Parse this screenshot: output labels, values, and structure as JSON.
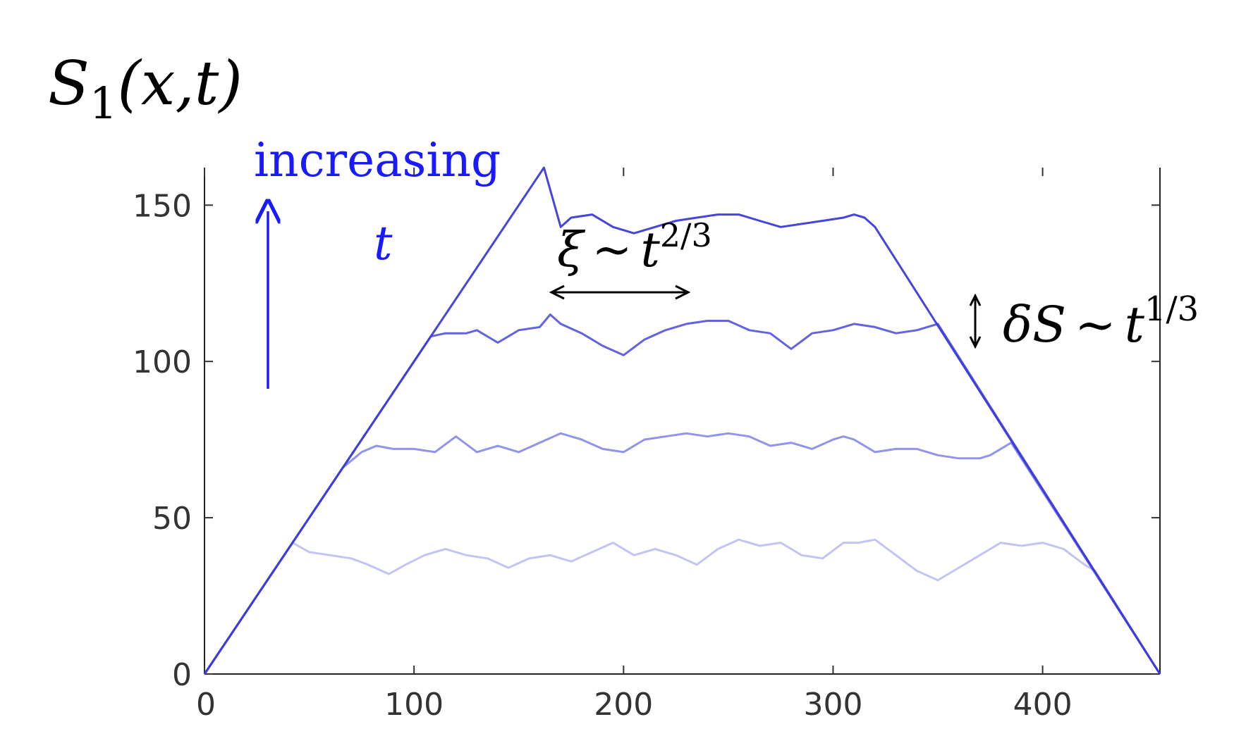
{
  "chart_data": {
    "type": "line",
    "title": "",
    "ylabel": {
      "letter": "S",
      "sub": "1",
      "args": "(x,t)"
    },
    "xlabel": "",
    "xlim": [
      0,
      456
    ],
    "ylim": [
      0,
      162
    ],
    "xticks": [
      0,
      100,
      200,
      300,
      400
    ],
    "yticks": [
      0,
      50,
      100,
      150
    ],
    "grid": false,
    "legend": "none",
    "colors": {
      "series": "#3b3bdc",
      "annotation": "#1a1aff",
      "axis": "#333333"
    },
    "series": [
      {
        "opacity": 0.3,
        "x": [
          0,
          42,
          50,
          60,
          70,
          78,
          88,
          96,
          105,
          115,
          125,
          135,
          145,
          155,
          165,
          175,
          185,
          195,
          205,
          215,
          225,
          235,
          245,
          255,
          265,
          275,
          285,
          295,
          305,
          312,
          320,
          330,
          340,
          350,
          360,
          370,
          380,
          390,
          400,
          410,
          420,
          425,
          456
        ],
        "y": [
          0,
          42,
          39,
          38,
          37,
          35,
          32,
          35,
          38,
          40,
          38,
          37,
          34,
          37,
          38,
          36,
          39,
          42,
          38,
          40,
          38,
          35,
          40,
          43,
          41,
          42,
          38,
          37,
          42,
          42,
          43,
          38,
          33,
          30,
          34,
          38,
          42,
          41,
          42,
          40,
          35,
          33,
          0
        ]
      },
      {
        "opacity": 0.55,
        "x": [
          0,
          66,
          75,
          82,
          90,
          100,
          110,
          120,
          130,
          140,
          150,
          160,
          170,
          180,
          190,
          200,
          210,
          220,
          230,
          240,
          250,
          260,
          270,
          280,
          290,
          300,
          305,
          310,
          320,
          330,
          340,
          350,
          360,
          370,
          375,
          385,
          456
        ],
        "y": [
          0,
          66,
          71,
          73,
          72,
          72,
          71,
          76,
          71,
          73,
          71,
          74,
          77,
          75,
          72,
          71,
          75,
          76,
          77,
          76,
          77,
          76,
          73,
          74,
          72,
          75,
          76,
          75,
          71,
          72,
          72,
          70,
          69,
          69,
          70,
          74,
          0
        ]
      },
      {
        "opacity": 0.8,
        "x": [
          0,
          108,
          115,
          125,
          130,
          140,
          150,
          160,
          165,
          170,
          180,
          190,
          200,
          210,
          220,
          230,
          240,
          250,
          260,
          270,
          280,
          290,
          300,
          310,
          320,
          330,
          340,
          350,
          456
        ],
        "y": [
          0,
          108,
          109,
          109,
          110,
          106,
          110,
          111,
          115,
          112,
          109,
          105,
          102,
          107,
          110,
          112,
          113,
          113,
          110,
          109,
          104,
          109,
          110,
          112,
          111,
          109,
          110,
          112,
          0
        ]
      },
      {
        "opacity": 0.95,
        "x": [
          0,
          162,
          170,
          175,
          185,
          195,
          205,
          215,
          225,
          235,
          245,
          255,
          265,
          275,
          285,
          295,
          305,
          310,
          315,
          320,
          456
        ],
        "y": [
          0,
          162,
          143,
          146,
          147,
          143,
          141,
          143,
          145,
          146,
          147,
          147,
          145,
          143,
          144,
          145,
          146,
          147,
          146,
          143,
          0
        ]
      }
    ],
    "annotations": {
      "increasing": "increasing",
      "t": "t",
      "xi_symbol": "ξ",
      "xi_sim": "~",
      "xi_t": "t",
      "xi_exp": "2/3",
      "ds_symbol": "δS",
      "ds_sim": "~",
      "ds_t": "t",
      "ds_exp": "1/3"
    }
  }
}
